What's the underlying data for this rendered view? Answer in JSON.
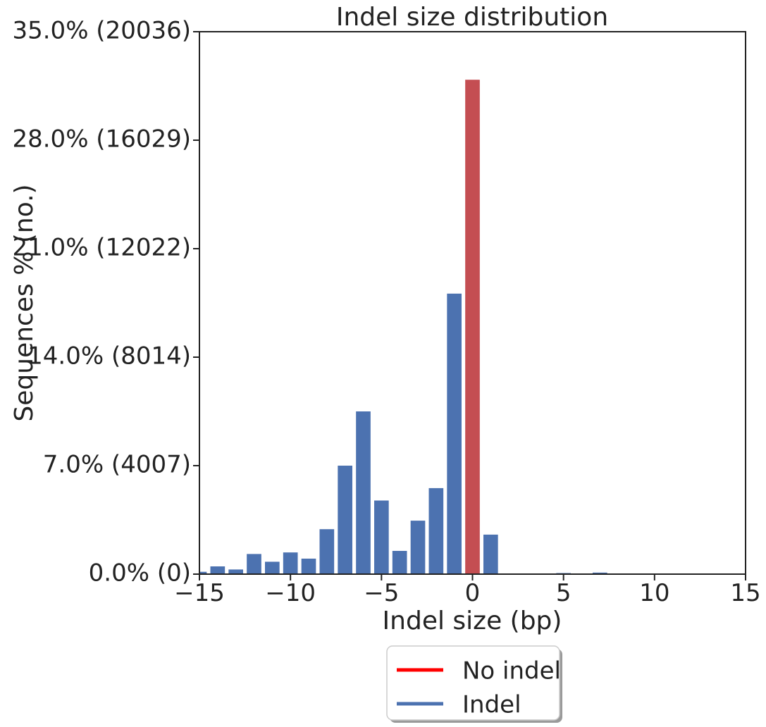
{
  "chart_data": {
    "type": "bar",
    "title": "Indel size distribution",
    "xlabel": "Indel size (bp)",
    "ylabel": "Sequences % (no.)",
    "xlim": [
      -15,
      15
    ],
    "ylim": [
      0,
      35
    ],
    "grid": false,
    "x_ticks": [
      {
        "value": -15,
        "label": "−15"
      },
      {
        "value": -10,
        "label": "−10"
      },
      {
        "value": -5,
        "label": "−5"
      },
      {
        "value": 0,
        "label": "0"
      },
      {
        "value": 5,
        "label": "5"
      },
      {
        "value": 10,
        "label": "10"
      },
      {
        "value": 15,
        "label": "15"
      }
    ],
    "y_ticks": [
      {
        "value": 0,
        "label": "0.0% (0)"
      },
      {
        "value": 7,
        "label": "7.0% (4007)"
      },
      {
        "value": 14,
        "label": "14.0% (8014)"
      },
      {
        "value": 21,
        "label": "21.0% (12022)"
      },
      {
        "value": 28,
        "label": "28.0% (16029)"
      },
      {
        "value": 35,
        "label": "35.0% (20036)"
      }
    ],
    "series": [
      {
        "name": "Indel",
        "color": "#4c72b0",
        "x": [
          -15,
          -14,
          -13,
          -12,
          -11,
          -10,
          -9,
          -8,
          -7,
          -6,
          -5,
          -4,
          -3,
          -2,
          -1,
          1,
          5,
          7
        ],
        "values": [
          0.15,
          0.5,
          0.3,
          1.3,
          0.8,
          1.4,
          1.0,
          2.9,
          7.0,
          10.5,
          4.75,
          1.5,
          3.45,
          5.55,
          18.1,
          2.55,
          0.07,
          0.1
        ]
      },
      {
        "name": "No indel",
        "color": "#c44e52",
        "x": [
          0
        ],
        "values": [
          31.9
        ]
      }
    ],
    "legend": {
      "placement": "bottom-center",
      "entries": [
        {
          "label": "No indel",
          "color": "#ff0000"
        },
        {
          "label": "Indel",
          "color": "#4c72b0"
        }
      ]
    }
  }
}
